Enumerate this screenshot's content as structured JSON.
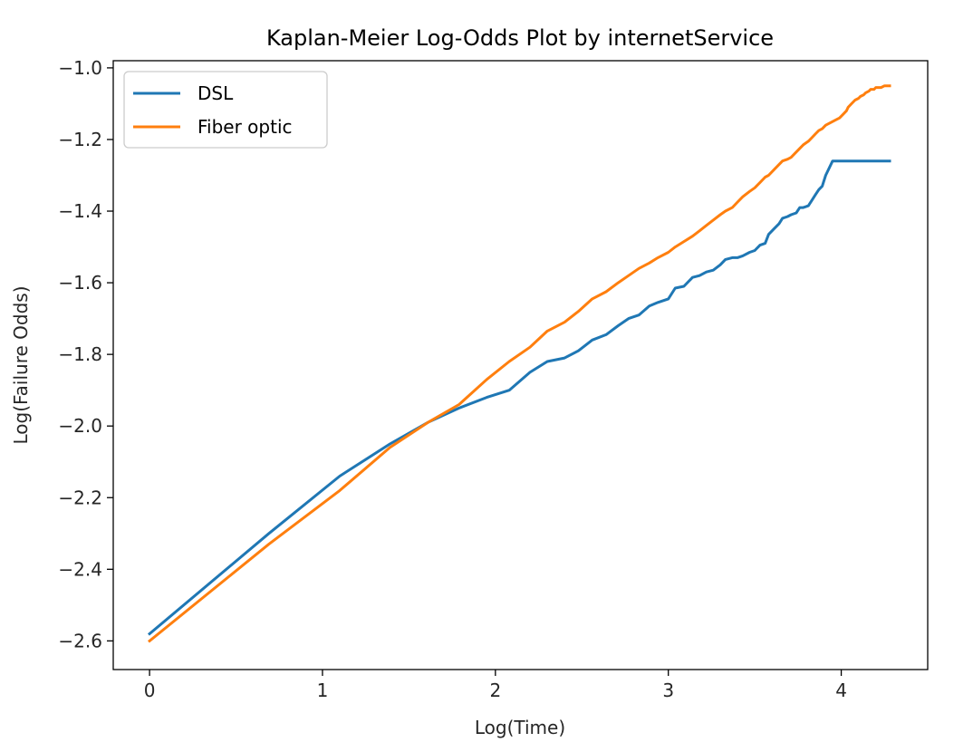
{
  "chart_data": {
    "type": "line",
    "title": "Kaplan-Meier Log-Odds Plot by internetService",
    "xlabel": "Log(Time)",
    "ylabel": "Log(Failure Odds)",
    "xlim": [
      -0.21,
      4.5
    ],
    "ylim": [
      -2.68,
      -0.98
    ],
    "x_ticks": [
      0,
      1,
      2,
      3,
      4
    ],
    "x_tick_labels": [
      "0",
      "1",
      "2",
      "3",
      "4"
    ],
    "y_ticks": [
      -2.6,
      -2.4,
      -2.2,
      -2.0,
      -1.8,
      -1.6,
      -1.4,
      -1.2,
      -1.0
    ],
    "y_tick_labels": [
      "−2.6",
      "−2.4",
      "−2.2",
      "−2.0",
      "−1.8",
      "−1.6",
      "−1.4",
      "−1.2",
      "−1.0"
    ],
    "grid": false,
    "legend_position": "upper-left",
    "series": [
      {
        "name": "DSL",
        "color": "#1f77b4",
        "x": [
          0,
          0.69,
          1.1,
          1.39,
          1.61,
          1.79,
          1.95,
          2.08,
          2.2,
          2.3,
          2.4,
          2.48,
          2.56,
          2.64,
          2.71,
          2.77,
          2.83,
          2.89,
          2.94,
          3.0,
          3.04,
          3.09,
          3.14,
          3.18,
          3.22,
          3.26,
          3.3,
          3.33,
          3.37,
          3.4,
          3.43,
          3.47,
          3.5,
          3.53,
          3.56,
          3.58,
          3.61,
          3.64,
          3.66,
          3.69,
          3.71,
          3.74,
          3.76,
          3.78,
          3.81,
          3.83,
          3.85,
          3.87,
          3.89,
          3.91,
          3.93,
          3.95,
          3.97,
          3.99,
          4.01,
          4.03,
          4.04,
          4.06,
          4.08,
          4.1,
          4.11,
          4.13,
          4.14,
          4.16,
          4.17,
          4.19,
          4.2,
          4.22,
          4.23,
          4.25,
          4.26,
          4.28
        ],
        "y": [
          -2.58,
          -2.3,
          -2.14,
          -2.05,
          -1.99,
          -1.95,
          -1.92,
          -1.9,
          -1.85,
          -1.82,
          -1.81,
          -1.79,
          -1.76,
          -1.745,
          -1.72,
          -1.7,
          -1.69,
          -1.665,
          -1.655,
          -1.645,
          -1.615,
          -1.61,
          -1.585,
          -1.58,
          -1.57,
          -1.565,
          -1.55,
          -1.535,
          -1.53,
          -1.53,
          -1.525,
          -1.515,
          -1.51,
          -1.495,
          -1.49,
          -1.465,
          -1.45,
          -1.435,
          -1.42,
          -1.415,
          -1.41,
          -1.405,
          -1.39,
          -1.39,
          -1.385,
          -1.37,
          -1.355,
          -1.34,
          -1.33,
          -1.3,
          -1.28,
          -1.26,
          -1.26,
          -1.26,
          -1.26,
          -1.26,
          -1.26,
          -1.26,
          -1.26,
          -1.26,
          -1.26,
          -1.26,
          -1.26,
          -1.26,
          -1.26,
          -1.26,
          -1.26,
          -1.26,
          -1.26,
          -1.26,
          -1.26,
          -1.26
        ]
      },
      {
        "name": "Fiber optic",
        "color": "#ff7f0e",
        "x": [
          0,
          0.69,
          1.1,
          1.39,
          1.61,
          1.79,
          1.95,
          2.08,
          2.2,
          2.3,
          2.4,
          2.48,
          2.56,
          2.64,
          2.71,
          2.77,
          2.83,
          2.89,
          2.94,
          3.0,
          3.04,
          3.09,
          3.14,
          3.18,
          3.22,
          3.26,
          3.3,
          3.33,
          3.37,
          3.4,
          3.43,
          3.47,
          3.5,
          3.53,
          3.56,
          3.58,
          3.61,
          3.64,
          3.66,
          3.69,
          3.71,
          3.74,
          3.76,
          3.78,
          3.81,
          3.83,
          3.85,
          3.87,
          3.89,
          3.91,
          3.93,
          3.95,
          3.97,
          3.99,
          4.01,
          4.03,
          4.04,
          4.06,
          4.08,
          4.1,
          4.11,
          4.13,
          4.14,
          4.16,
          4.17,
          4.19,
          4.2,
          4.22,
          4.23,
          4.25,
          4.26,
          4.28
        ],
        "y": [
          -2.6,
          -2.33,
          -2.18,
          -2.06,
          -1.99,
          -1.94,
          -1.87,
          -1.82,
          -1.78,
          -1.735,
          -1.71,
          -1.68,
          -1.645,
          -1.625,
          -1.6,
          -1.58,
          -1.56,
          -1.545,
          -1.53,
          -1.515,
          -1.5,
          -1.485,
          -1.47,
          -1.455,
          -1.44,
          -1.425,
          -1.41,
          -1.4,
          -1.39,
          -1.375,
          -1.36,
          -1.345,
          -1.335,
          -1.32,
          -1.305,
          -1.3,
          -1.285,
          -1.27,
          -1.26,
          -1.255,
          -1.25,
          -1.235,
          -1.225,
          -1.215,
          -1.205,
          -1.195,
          -1.185,
          -1.175,
          -1.17,
          -1.16,
          -1.155,
          -1.15,
          -1.145,
          -1.14,
          -1.13,
          -1.12,
          -1.11,
          -1.1,
          -1.09,
          -1.085,
          -1.08,
          -1.075,
          -1.07,
          -1.065,
          -1.06,
          -1.06,
          -1.055,
          -1.055,
          -1.055,
          -1.05,
          -1.05,
          -1.05
        ]
      }
    ]
  }
}
